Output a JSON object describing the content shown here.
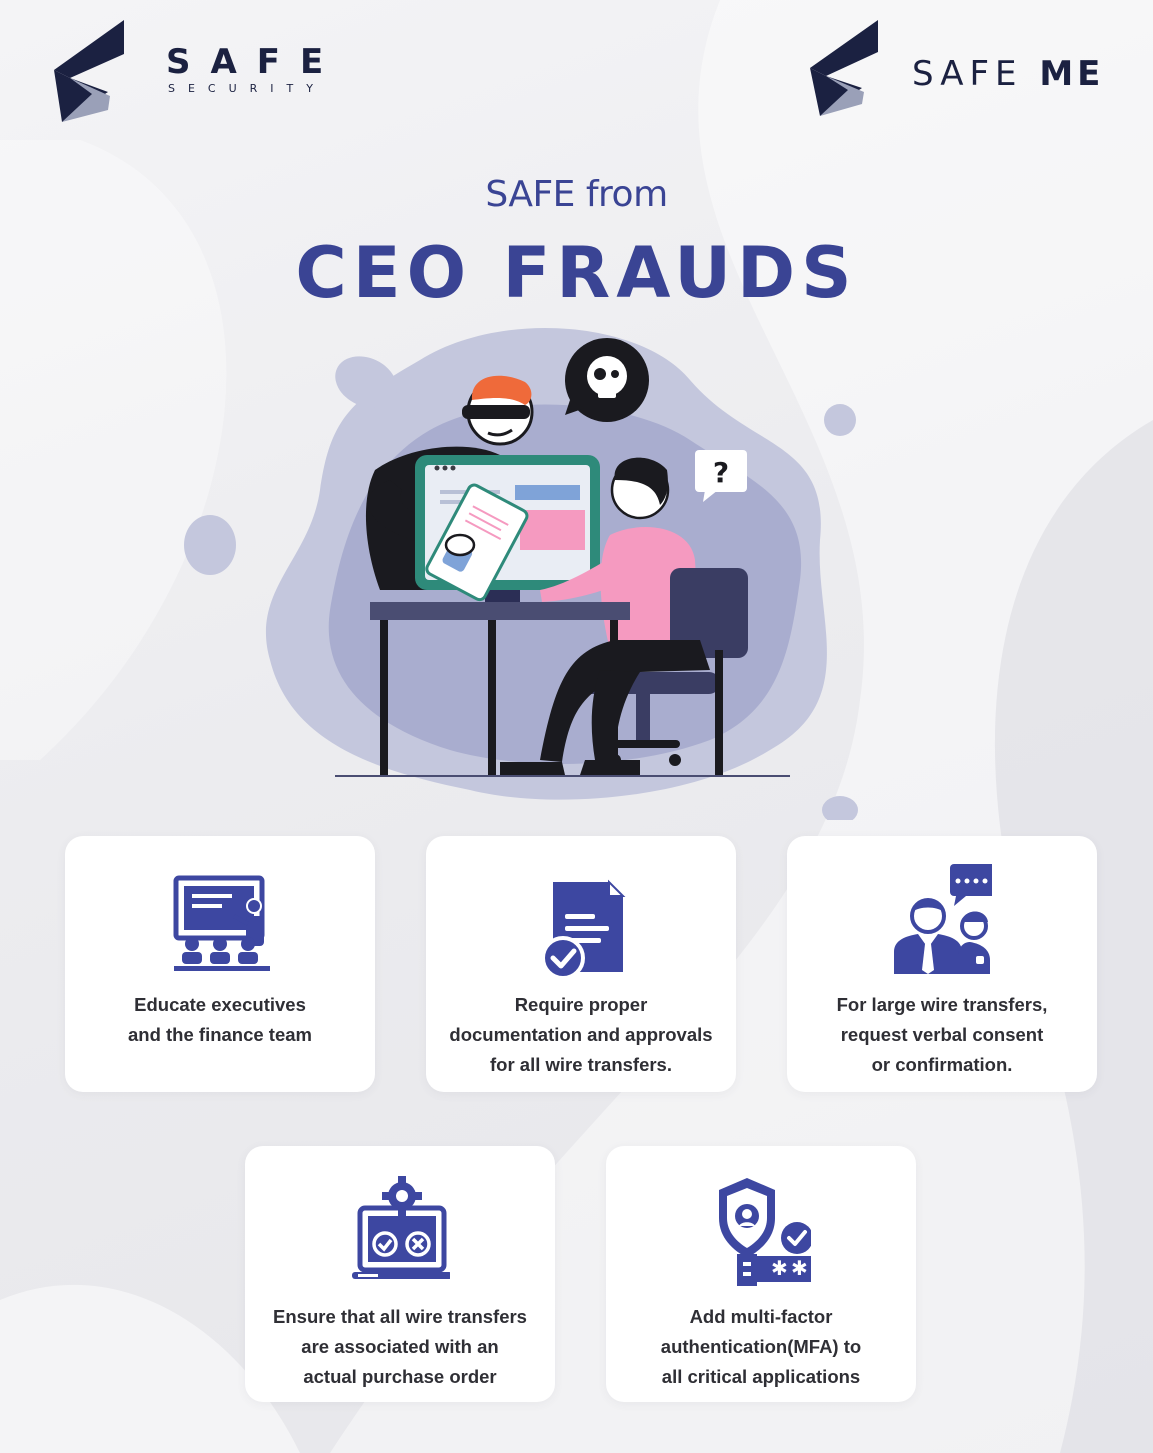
{
  "logos": {
    "left": {
      "word": "SAFE",
      "sub": "SECURITY"
    },
    "right": {
      "word_a": "SAFE",
      "word_b": "ME"
    }
  },
  "heading": {
    "small": "SAFE from",
    "big": "CEO FRAUDS"
  },
  "illustration": {
    "bubble_mark": "?"
  },
  "cards": [
    {
      "icon": "presentation-board-icon",
      "text": "Educate executives\nand the finance team"
    },
    {
      "icon": "approved-document-icon",
      "text": "Require proper\ndocumentation and approvals\nfor all wire transfers."
    },
    {
      "icon": "verbal-consent-icon",
      "text": "For large wire transfers,\nrequest verbal consent\nor confirmation."
    },
    {
      "icon": "laptop-gear-check-icon",
      "text": "Ensure that all wire transfers\nare associated with an\nactual purchase order"
    },
    {
      "icon": "shield-key-mfa-icon",
      "text": "Add multi-factor\nauthentication(MFA) to\nall critical applications"
    }
  ],
  "colors": {
    "primary": "#3a4494",
    "icon": "#3d47a1",
    "navy": "#1b2141",
    "blob": "#a9adcf",
    "shirt": "#f59ac0"
  }
}
